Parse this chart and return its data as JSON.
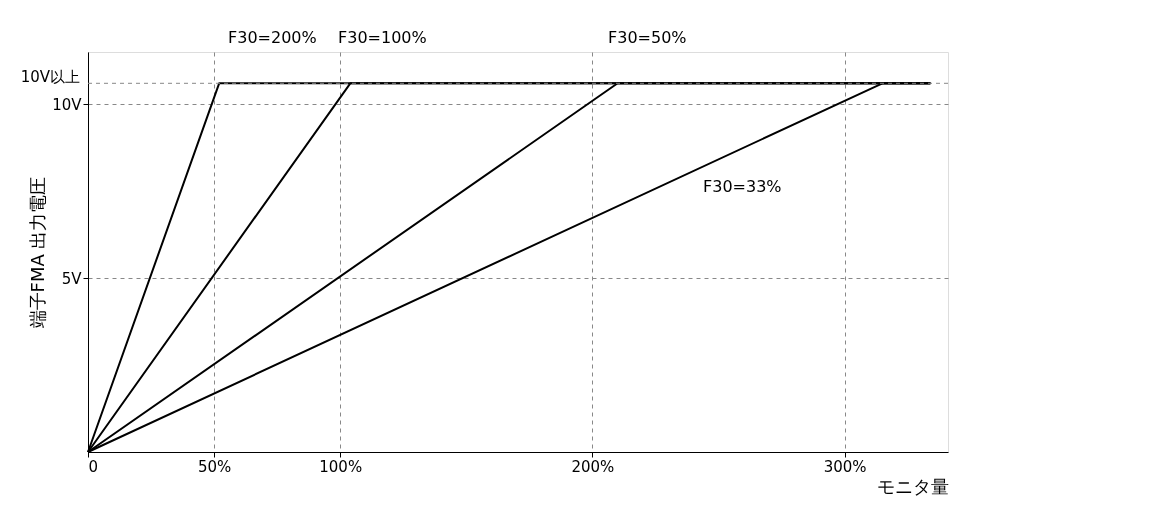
{
  "chart_data": {
    "type": "line",
    "xlabel": "モニタ量",
    "ylabel": "端子FMA 出力電圧",
    "xlim": [
      0,
      341
    ],
    "ylim": [
      0,
      11.5
    ],
    "xticks": [
      {
        "value": 0,
        "label": "0"
      },
      {
        "value": 50,
        "label": "50%"
      },
      {
        "value": 100,
        "label": "100%"
      },
      {
        "value": 200,
        "label": "200%"
      },
      {
        "value": 300,
        "label": "300%"
      }
    ],
    "yticks": [
      {
        "value": 5,
        "label": "5V"
      },
      {
        "value": 10,
        "label": "10V"
      }
    ],
    "ref_lines": [
      {
        "axis": "y",
        "value": 10.6,
        "label": "10V以上",
        "line_style": "dashed"
      }
    ],
    "grid": true,
    "line_style": "solid",
    "marker": "none",
    "series": [
      {
        "color": "#000000",
        "x": [
          0,
          52,
          334
        ],
        "values": [
          0,
          10.6,
          10.6
        ]
      },
      {
        "color": "#000000",
        "x": [
          0,
          104,
          334
        ],
        "values": [
          0,
          10.6,
          10.6
        ]
      },
      {
        "color": "#000000",
        "x": [
          0,
          210,
          334
        ],
        "values": [
          0,
          10.6,
          10.6
        ]
      },
      {
        "color": "#000000",
        "x": [
          0,
          315,
          334
        ],
        "values": [
          0,
          10.6,
          10.6
        ]
      }
    ],
    "annotations": [
      "F30=200%",
      "F30=100%",
      "F30=50%",
      "F30=33%"
    ]
  }
}
